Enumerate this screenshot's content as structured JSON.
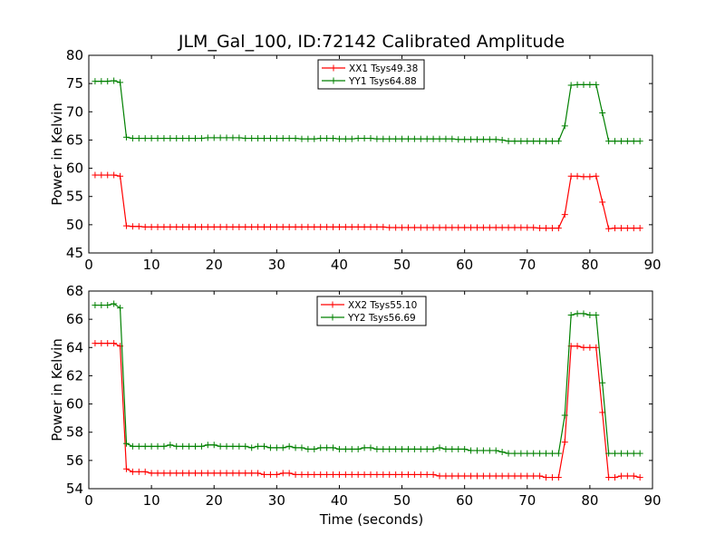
{
  "chart_data": [
    {
      "type": "line",
      "title": "JLM_Gal_100, ID:72142 Calibrated Amplitude",
      "xlabel": "",
      "ylabel": "Power in Kelvin",
      "xlim": [
        0,
        90
      ],
      "ylim": [
        45,
        80
      ],
      "xticks": [
        0,
        10,
        20,
        30,
        40,
        50,
        60,
        70,
        80,
        90
      ],
      "yticks": [
        45,
        50,
        55,
        60,
        65,
        70,
        75,
        80
      ],
      "grid": false,
      "legend_position": "top-center",
      "x": [
        1,
        2,
        3,
        4,
        5,
        6,
        7,
        8,
        9,
        10,
        11,
        12,
        13,
        14,
        15,
        16,
        17,
        18,
        19,
        20,
        21,
        22,
        23,
        24,
        25,
        26,
        27,
        28,
        29,
        30,
        31,
        32,
        33,
        34,
        35,
        36,
        37,
        38,
        39,
        40,
        41,
        42,
        43,
        44,
        45,
        46,
        47,
        48,
        49,
        50,
        51,
        52,
        53,
        54,
        55,
        56,
        57,
        58,
        59,
        60,
        61,
        62,
        63,
        64,
        65,
        66,
        67,
        68,
        69,
        70,
        71,
        72,
        73,
        74,
        75,
        76,
        77,
        78,
        79,
        80,
        81,
        82,
        83,
        84,
        85,
        86,
        87,
        88
      ],
      "series": [
        {
          "name": "XX1 Tsys49.38",
          "color": "#ff0000",
          "values": [
            58.8,
            58.8,
            58.8,
            58.8,
            58.6,
            49.8,
            49.7,
            49.7,
            49.6,
            49.6,
            49.6,
            49.6,
            49.6,
            49.6,
            49.6,
            49.6,
            49.6,
            49.6,
            49.6,
            49.6,
            49.6,
            49.6,
            49.6,
            49.6,
            49.6,
            49.6,
            49.6,
            49.6,
            49.6,
            49.6,
            49.6,
            49.6,
            49.6,
            49.6,
            49.6,
            49.6,
            49.6,
            49.6,
            49.6,
            49.6,
            49.6,
            49.6,
            49.6,
            49.6,
            49.6,
            49.6,
            49.6,
            49.5,
            49.5,
            49.5,
            49.5,
            49.5,
            49.5,
            49.5,
            49.5,
            49.5,
            49.5,
            49.5,
            49.5,
            49.5,
            49.5,
            49.5,
            49.5,
            49.5,
            49.5,
            49.5,
            49.5,
            49.5,
            49.5,
            49.5,
            49.5,
            49.4,
            49.4,
            49.4,
            49.4,
            51.8,
            58.6,
            58.6,
            58.5,
            58.5,
            58.6,
            54.0,
            49.3,
            49.4,
            49.4,
            49.4,
            49.4,
            49.4
          ]
        },
        {
          "name": "YY1 Tsys64.88",
          "color": "#008000",
          "values": [
            75.4,
            75.4,
            75.4,
            75.5,
            75.2,
            65.5,
            65.3,
            65.3,
            65.3,
            65.3,
            65.3,
            65.3,
            65.3,
            65.3,
            65.3,
            65.3,
            65.3,
            65.3,
            65.4,
            65.4,
            65.4,
            65.4,
            65.4,
            65.4,
            65.3,
            65.3,
            65.3,
            65.3,
            65.3,
            65.3,
            65.3,
            65.3,
            65.3,
            65.2,
            65.2,
            65.2,
            65.3,
            65.3,
            65.3,
            65.2,
            65.2,
            65.2,
            65.3,
            65.3,
            65.3,
            65.2,
            65.2,
            65.2,
            65.2,
            65.2,
            65.2,
            65.2,
            65.2,
            65.2,
            65.2,
            65.2,
            65.2,
            65.2,
            65.1,
            65.1,
            65.1,
            65.1,
            65.1,
            65.1,
            65.1,
            65.0,
            64.8,
            64.8,
            64.8,
            64.8,
            64.8,
            64.8,
            64.8,
            64.8,
            64.8,
            67.5,
            74.7,
            74.8,
            74.8,
            74.8,
            74.8,
            69.8,
            64.8,
            64.8,
            64.8,
            64.8,
            64.8,
            64.8
          ]
        }
      ]
    },
    {
      "type": "line",
      "title": "",
      "xlabel": "Time (seconds)",
      "ylabel": "Power in Kelvin",
      "xlim": [
        0,
        90
      ],
      "ylim": [
        54,
        68
      ],
      "xticks": [
        0,
        10,
        20,
        30,
        40,
        50,
        60,
        70,
        80,
        90
      ],
      "yticks": [
        54,
        56,
        58,
        60,
        62,
        64,
        66,
        68
      ],
      "grid": false,
      "legend_position": "top-center",
      "x": [
        1,
        2,
        3,
        4,
        5,
        6,
        7,
        8,
        9,
        10,
        11,
        12,
        13,
        14,
        15,
        16,
        17,
        18,
        19,
        20,
        21,
        22,
        23,
        24,
        25,
        26,
        27,
        28,
        29,
        30,
        31,
        32,
        33,
        34,
        35,
        36,
        37,
        38,
        39,
        40,
        41,
        42,
        43,
        44,
        45,
        46,
        47,
        48,
        49,
        50,
        51,
        52,
        53,
        54,
        55,
        56,
        57,
        58,
        59,
        60,
        61,
        62,
        63,
        64,
        65,
        66,
        67,
        68,
        69,
        70,
        71,
        72,
        73,
        74,
        75,
        76,
        77,
        78,
        79,
        80,
        81,
        82,
        83,
        84,
        85,
        86,
        87,
        88
      ],
      "series": [
        {
          "name": "XX2 Tsys55.10",
          "color": "#ff0000",
          "values": [
            64.3,
            64.3,
            64.3,
            64.3,
            64.1,
            55.4,
            55.2,
            55.2,
            55.2,
            55.1,
            55.1,
            55.1,
            55.1,
            55.1,
            55.1,
            55.1,
            55.1,
            55.1,
            55.1,
            55.1,
            55.1,
            55.1,
            55.1,
            55.1,
            55.1,
            55.1,
            55.1,
            55.0,
            55.0,
            55.0,
            55.1,
            55.1,
            55.0,
            55.0,
            55.0,
            55.0,
            55.0,
            55.0,
            55.0,
            55.0,
            55.0,
            55.0,
            55.0,
            55.0,
            55.0,
            55.0,
            55.0,
            55.0,
            55.0,
            55.0,
            55.0,
            55.0,
            55.0,
            55.0,
            55.0,
            54.9,
            54.9,
            54.9,
            54.9,
            54.9,
            54.9,
            54.9,
            54.9,
            54.9,
            54.9,
            54.9,
            54.9,
            54.9,
            54.9,
            54.9,
            54.9,
            54.9,
            54.8,
            54.8,
            54.8,
            57.3,
            64.1,
            64.1,
            64.0,
            64.0,
            64.0,
            59.4,
            54.8,
            54.8,
            54.9,
            54.9,
            54.9,
            54.8
          ]
        },
        {
          "name": "YY2 Tsys56.69",
          "color": "#008000",
          "values": [
            67.0,
            67.0,
            67.0,
            67.1,
            66.8,
            57.2,
            57.0,
            57.0,
            57.0,
            57.0,
            57.0,
            57.0,
            57.1,
            57.0,
            57.0,
            57.0,
            57.0,
            57.0,
            57.1,
            57.1,
            57.0,
            57.0,
            57.0,
            57.0,
            57.0,
            56.9,
            57.0,
            57.0,
            56.9,
            56.9,
            56.9,
            57.0,
            56.9,
            56.9,
            56.8,
            56.8,
            56.9,
            56.9,
            56.9,
            56.8,
            56.8,
            56.8,
            56.8,
            56.9,
            56.9,
            56.8,
            56.8,
            56.8,
            56.8,
            56.8,
            56.8,
            56.8,
            56.8,
            56.8,
            56.8,
            56.9,
            56.8,
            56.8,
            56.8,
            56.8,
            56.7,
            56.7,
            56.7,
            56.7,
            56.7,
            56.6,
            56.5,
            56.5,
            56.5,
            56.5,
            56.5,
            56.5,
            56.5,
            56.5,
            56.5,
            59.2,
            66.3,
            66.4,
            66.4,
            66.3,
            66.3,
            61.5,
            56.5,
            56.5,
            56.5,
            56.5,
            56.5,
            56.5
          ]
        }
      ]
    }
  ]
}
